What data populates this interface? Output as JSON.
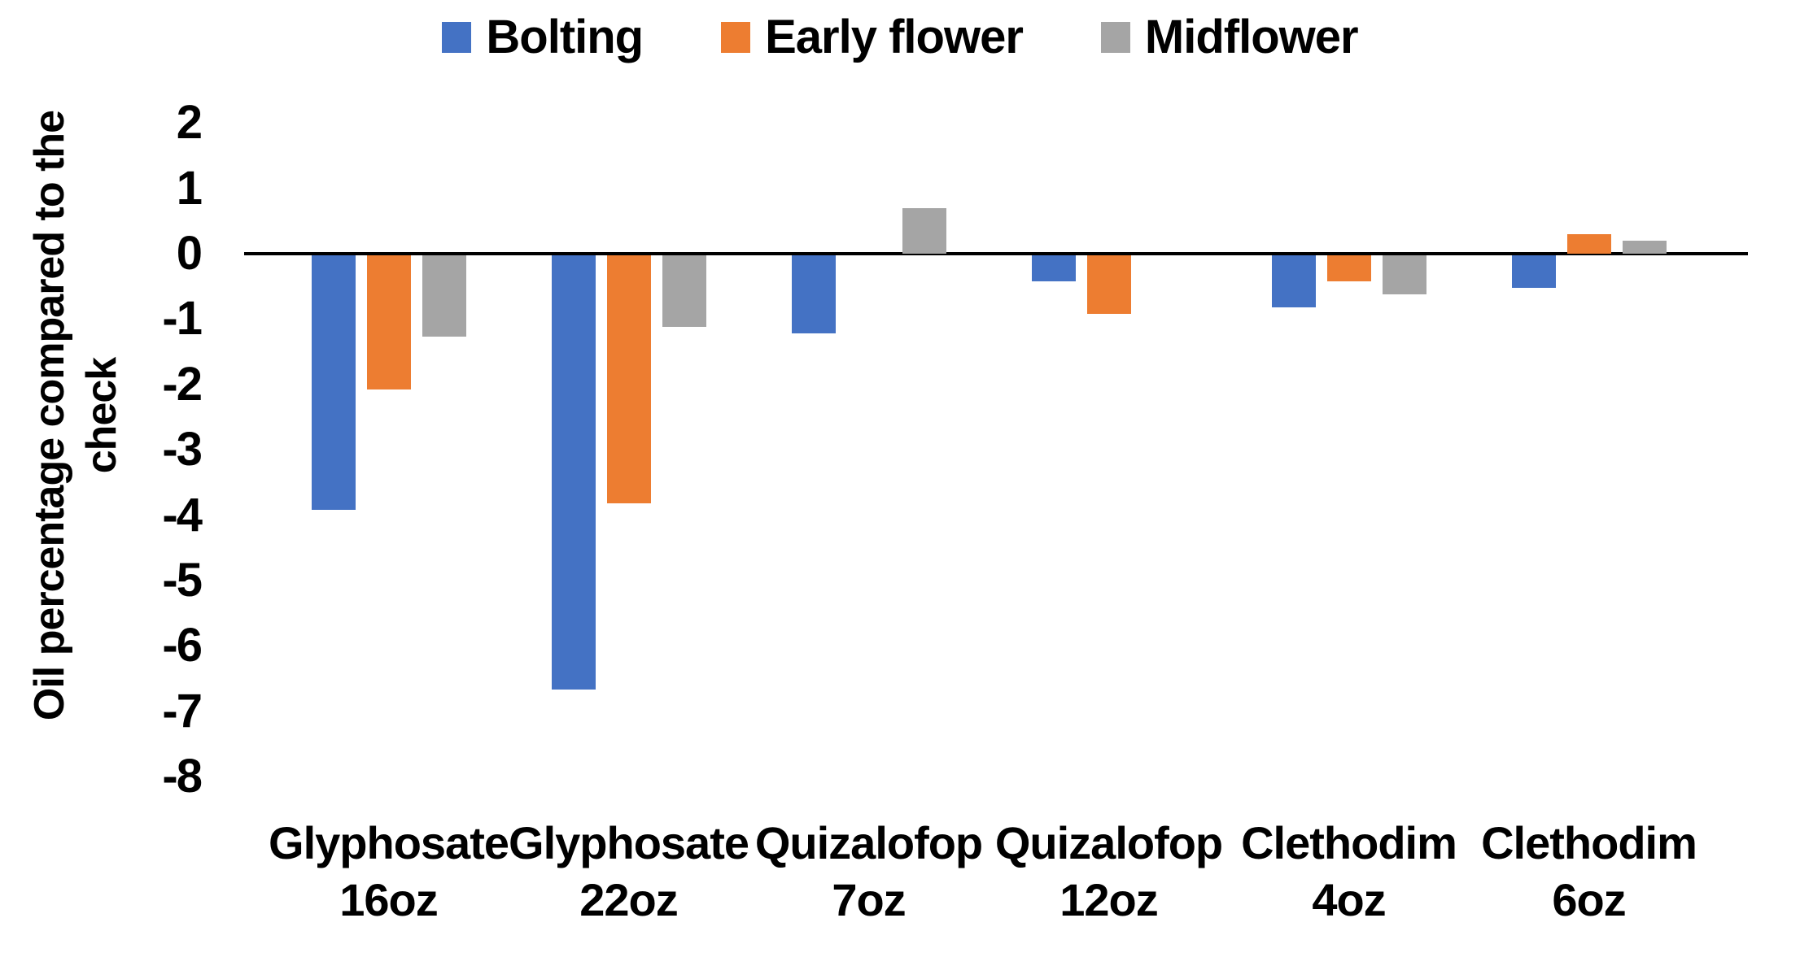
{
  "chart_data": {
    "type": "bar",
    "title": "",
    "ylabel": "Oil percentage compared to the check",
    "xlabel": "",
    "categories": [
      "Glyphosate 16oz",
      "Glyphosate 22oz",
      "Quizalofop 7oz",
      "Quizalofop 12oz",
      "Clethodim 4oz",
      "Clethodim 6oz"
    ],
    "series": [
      {
        "name": "Bolting",
        "color": "#4472C4",
        "values": [
          -3.9,
          -6.65,
          -1.2,
          -0.4,
          -0.8,
          -0.5
        ]
      },
      {
        "name": "Early flower",
        "color": "#ED7D31",
        "values": [
          -2.05,
          -3.8,
          0,
          -0.9,
          -0.4,
          0.3
        ]
      },
      {
        "name": "Midflower",
        "color": "#A5A5A5",
        "values": [
          -1.25,
          -1.1,
          0.7,
          0,
          -0.6,
          0.2
        ]
      }
    ],
    "yticks": [
      2,
      1,
      0,
      -1,
      -2,
      -3,
      -4,
      -5,
      -6,
      -7,
      -8
    ],
    "ylim": [
      -8,
      2
    ],
    "grid": false,
    "legend_position": "top",
    "axis_line_color": "#000000",
    "text_color": "#000000",
    "background_color": "#FFFFFF"
  }
}
